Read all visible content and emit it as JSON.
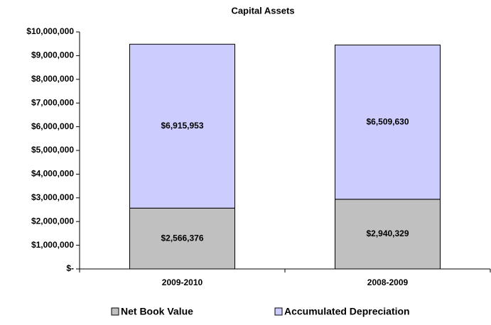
{
  "chart_data": {
    "type": "stacked_bar",
    "title": "Capital Assets",
    "categories": [
      "2009-2010",
      "2008-2009"
    ],
    "series": [
      {
        "name": "Net Book Value",
        "color": "#c0c0c0",
        "values": [
          2566376,
          2940329
        ],
        "value_labels": [
          "$2,566,376",
          "$2,940,329"
        ]
      },
      {
        "name": "Accumulated Depreciation",
        "color": "#ccccff",
        "values": [
          6915953,
          6509630
        ],
        "value_labels": [
          "$6,915,953",
          "$6,509,630"
        ]
      }
    ],
    "ylim": [
      0,
      10000000
    ],
    "yticks": [
      {
        "value": 0,
        "label": "$-"
      },
      {
        "value": 1000000,
        "label": "$1,000,000"
      },
      {
        "value": 2000000,
        "label": "$2,000,000"
      },
      {
        "value": 3000000,
        "label": "$3,000,000"
      },
      {
        "value": 4000000,
        "label": "$4,000,000"
      },
      {
        "value": 5000000,
        "label": "$5,000,000"
      },
      {
        "value": 6000000,
        "label": "$6,000,000"
      },
      {
        "value": 7000000,
        "label": "$7,000,000"
      },
      {
        "value": 8000000,
        "label": "$8,000,000"
      },
      {
        "value": 9000000,
        "label": "$9,000,000"
      },
      {
        "value": 10000000,
        "label": "$10,000,000"
      }
    ],
    "legend": "bottom"
  }
}
